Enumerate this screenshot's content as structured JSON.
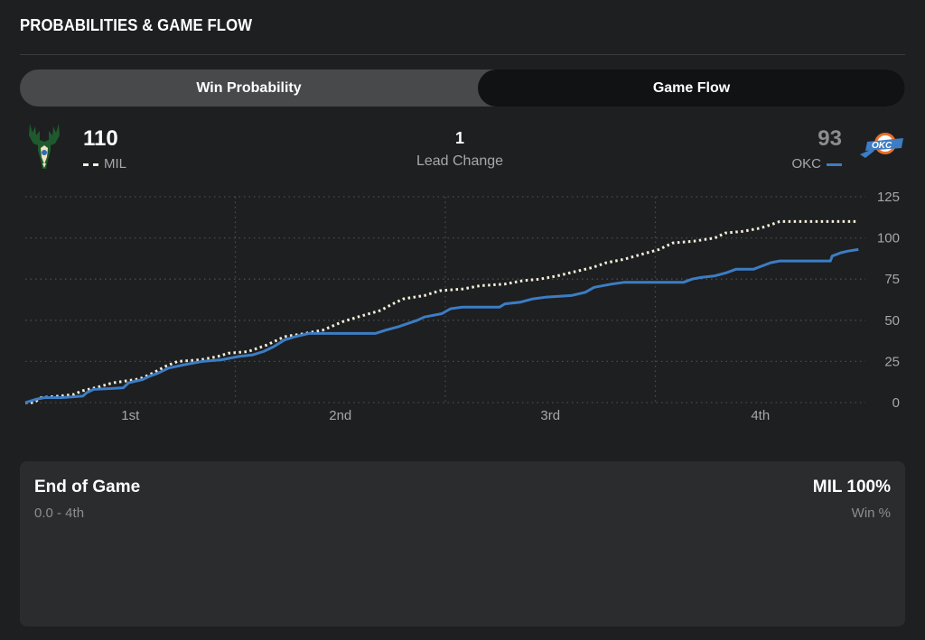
{
  "section_title": "PROBABILITIES & GAME FLOW",
  "tabs": [
    {
      "label": "Win Probability",
      "active": false
    },
    {
      "label": "Game Flow",
      "active": true
    }
  ],
  "home_team": {
    "abbr": "MIL",
    "score": "110",
    "color": "#f5f0dc",
    "logo": "bucks-logo-icon"
  },
  "away_team": {
    "abbr": "OKC",
    "score": "93",
    "color": "#3c7dc4",
    "logo": "thunder-logo-icon"
  },
  "lead_changes": {
    "value": "1",
    "label": "Lead Change"
  },
  "chart_data": {
    "type": "line",
    "xlabel": "",
    "ylabel": "",
    "x_range": [
      0,
      48
    ],
    "ylim": [
      0,
      125
    ],
    "y_ticks": [
      0,
      25,
      50,
      75,
      100,
      125
    ],
    "x_ticks": [
      {
        "label": "1st",
        "at": 6
      },
      {
        "label": "2nd",
        "at": 18
      },
      {
        "label": "3rd",
        "at": 30
      },
      {
        "label": "4th",
        "at": 42
      }
    ],
    "grid": true,
    "legend": "top",
    "series": [
      {
        "name": "MIL",
        "style": "dotted",
        "color": "#f5f0dc",
        "points": [
          [
            0,
            0
          ],
          [
            0.5,
            0
          ],
          [
            0.9,
            3
          ],
          [
            2,
            4
          ],
          [
            2.8,
            5
          ],
          [
            3.2,
            7
          ],
          [
            4,
            9
          ],
          [
            5,
            12
          ],
          [
            6.3,
            14
          ],
          [
            6.7,
            15
          ],
          [
            7.3,
            18
          ],
          [
            8,
            22
          ],
          [
            8.7,
            25
          ],
          [
            10,
            26
          ],
          [
            11,
            28
          ],
          [
            11.6,
            30
          ],
          [
            12.7,
            31
          ],
          [
            13,
            32
          ],
          [
            13.8,
            35
          ],
          [
            14.8,
            40
          ],
          [
            16,
            42
          ],
          [
            17,
            44
          ],
          [
            18.1,
            49
          ],
          [
            19,
            52
          ],
          [
            20.3,
            56
          ],
          [
            21,
            60
          ],
          [
            21.6,
            63
          ],
          [
            22.8,
            65
          ],
          [
            23.7,
            68
          ],
          [
            25,
            69
          ],
          [
            26,
            71
          ],
          [
            27.4,
            72
          ],
          [
            28.4,
            74
          ],
          [
            29.4,
            75
          ],
          [
            30.4,
            77
          ],
          [
            31.2,
            79
          ],
          [
            32.4,
            82
          ],
          [
            33.2,
            85
          ],
          [
            34.2,
            87
          ],
          [
            35.2,
            90
          ],
          [
            36.2,
            93
          ],
          [
            37,
            97
          ],
          [
            38.2,
            98
          ],
          [
            39.4,
            100
          ],
          [
            40,
            103
          ],
          [
            41,
            104
          ],
          [
            42,
            106
          ],
          [
            42.6,
            108
          ],
          [
            43.1,
            110
          ],
          [
            44,
            110
          ],
          [
            47.6,
            110
          ]
        ]
      },
      {
        "name": "OKC",
        "style": "solid",
        "color": "#3c7dc4",
        "points": [
          [
            0,
            0
          ],
          [
            0.6,
            2
          ],
          [
            1.1,
            3
          ],
          [
            2.1,
            3
          ],
          [
            3.3,
            4
          ],
          [
            3.5,
            6
          ],
          [
            3.9,
            8
          ],
          [
            5.6,
            9
          ],
          [
            5.9,
            12
          ],
          [
            6.7,
            14
          ],
          [
            7.1,
            16
          ],
          [
            7.6,
            18
          ],
          [
            8.2,
            21
          ],
          [
            9.1,
            23
          ],
          [
            10.1,
            25
          ],
          [
            11.2,
            26
          ],
          [
            12.2,
            28
          ],
          [
            13,
            29
          ],
          [
            13.6,
            31
          ],
          [
            14.2,
            34
          ],
          [
            14.8,
            38
          ],
          [
            15.4,
            40
          ],
          [
            16.2,
            42
          ],
          [
            18,
            42
          ],
          [
            20,
            42
          ],
          [
            20.6,
            44
          ],
          [
            21.3,
            46
          ],
          [
            22.4,
            50
          ],
          [
            22.8,
            52
          ],
          [
            23.8,
            54
          ],
          [
            24.3,
            57
          ],
          [
            25,
            58
          ],
          [
            27.1,
            58
          ],
          [
            27.4,
            60
          ],
          [
            28.3,
            61
          ],
          [
            29,
            63
          ],
          [
            29.7,
            64
          ],
          [
            31.2,
            65
          ],
          [
            32,
            67
          ],
          [
            32.5,
            70
          ],
          [
            33.5,
            72
          ],
          [
            34.2,
            73
          ],
          [
            36.5,
            73
          ],
          [
            37.6,
            73
          ],
          [
            38.1,
            75
          ],
          [
            38.6,
            76
          ],
          [
            39.4,
            77
          ],
          [
            40.1,
            79
          ],
          [
            40.6,
            81
          ],
          [
            41.6,
            81
          ],
          [
            42.1,
            83
          ],
          [
            42.6,
            85
          ],
          [
            43.1,
            86
          ],
          [
            46,
            86
          ],
          [
            46.1,
            89
          ],
          [
            46.6,
            91
          ],
          [
            47,
            92
          ],
          [
            47.6,
            93
          ]
        ]
      }
    ]
  },
  "summary": {
    "title": "End of Game",
    "subtitle": "0.0 - 4th",
    "right_title": "MIL 100%",
    "right_subtitle": "Win %"
  }
}
